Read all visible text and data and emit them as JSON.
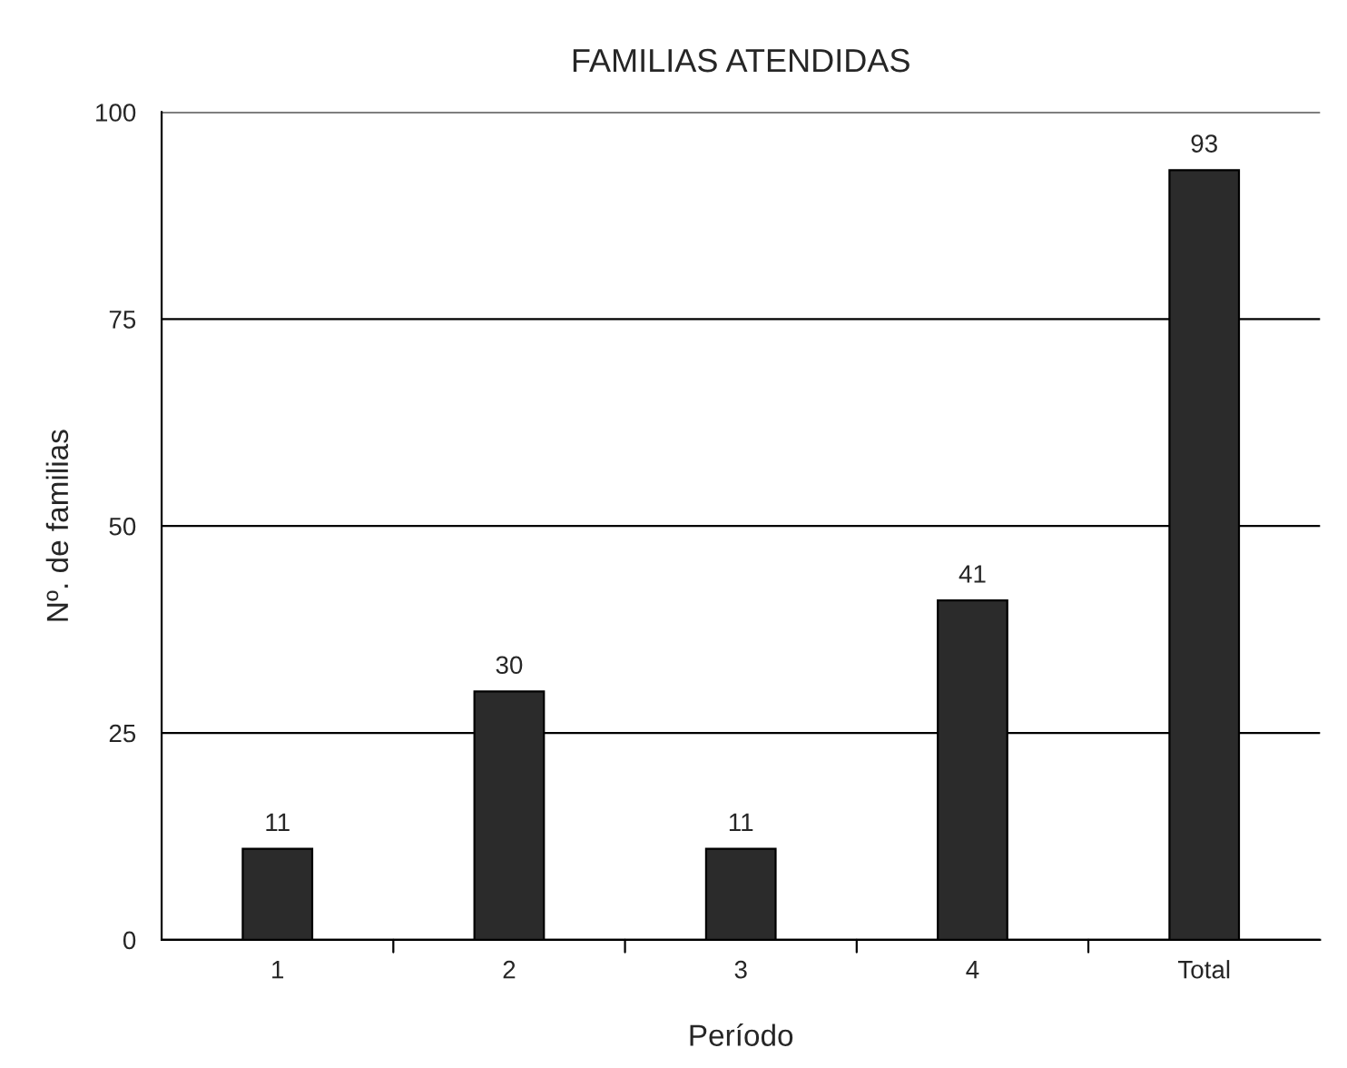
{
  "chart_data": {
    "type": "bar",
    "title": "FAMILIAS ATENDIDAS",
    "xlabel": "Período",
    "ylabel": "Nº. de familias",
    "categories": [
      "1",
      "2",
      "3",
      "4",
      "Total"
    ],
    "values": [
      11,
      30,
      11,
      41,
      93
    ],
    "color": "#2b2b2b",
    "ylim": [
      0,
      100
    ],
    "yticks": [
      0,
      25,
      50,
      75,
      100
    ],
    "grid": "y",
    "data_labels": true
  }
}
